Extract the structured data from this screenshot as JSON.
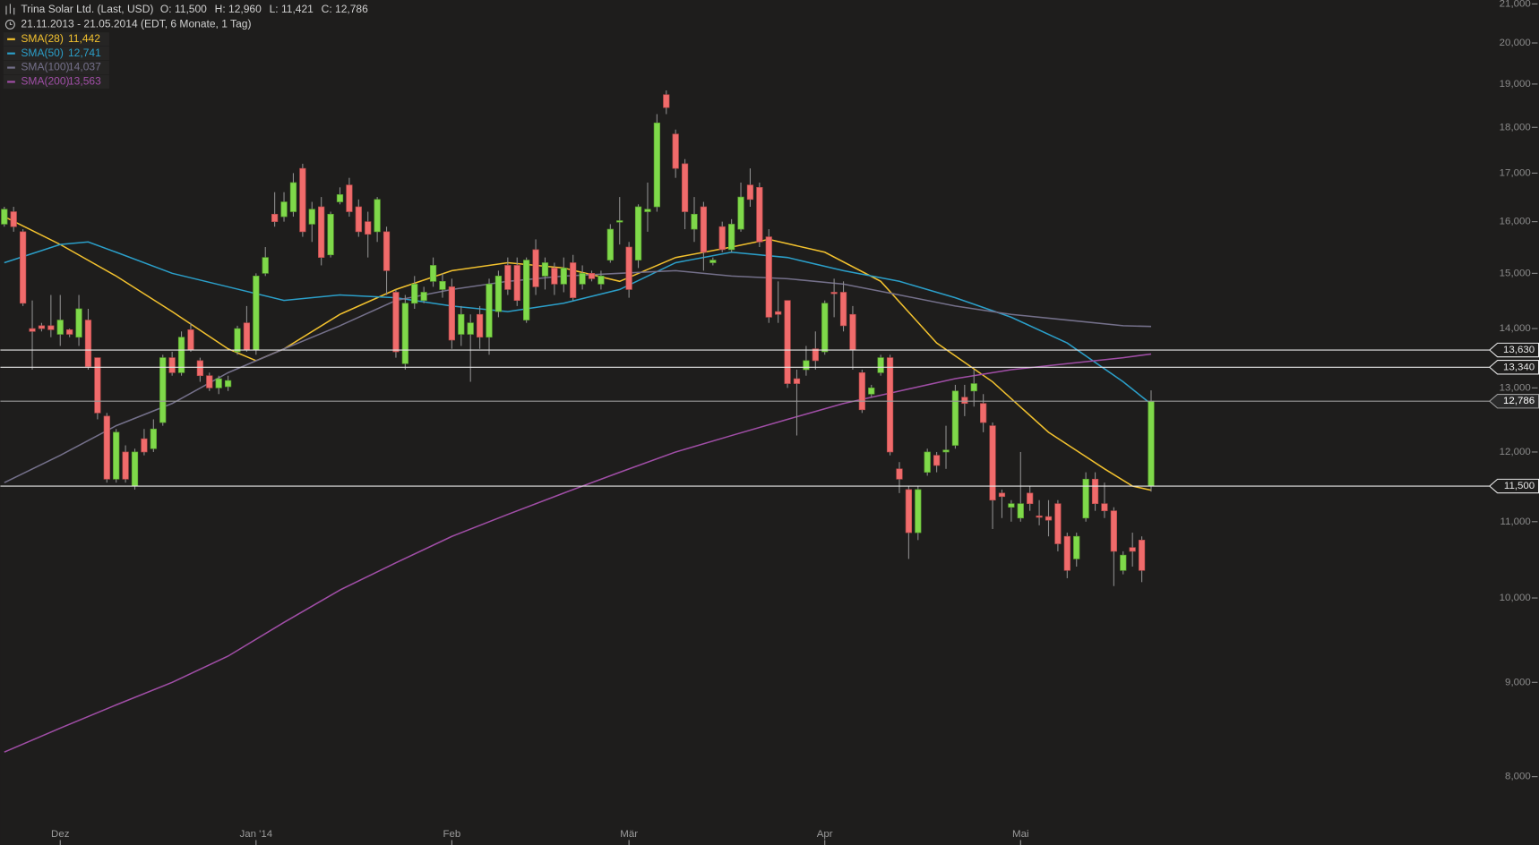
{
  "chart_data": {
    "type": "candlestick",
    "title": "Trina Solar Ltd. (Last, USD)",
    "ohlc_labels": [
      "O: 11,500",
      "H: 12,960",
      "L: 11,421",
      "C: 12,786"
    ],
    "subtitle": "21.11.2013 - 21.05.2014 (EDT, 6 Monate, 1 Tag)",
    "up_color": "#7fd94a",
    "down_color": "#f06b6b",
    "log_scale": true,
    "ylim": [
      7500,
      21000
    ],
    "yticks": [
      {
        "value": 8000,
        "label": "8,000"
      },
      {
        "value": 9000,
        "label": "9,000"
      },
      {
        "value": 10000,
        "label": "10,000"
      },
      {
        "value": 11000,
        "label": "11,000"
      },
      {
        "value": 12000,
        "label": "12,000"
      },
      {
        "value": 13000,
        "label": "13,000"
      },
      {
        "value": 14000,
        "label": "14,000"
      },
      {
        "value": 15000,
        "label": "15,000"
      },
      {
        "value": 16000,
        "label": "16,000"
      },
      {
        "value": 17000,
        "label": "17,000"
      },
      {
        "value": 18000,
        "label": "18,000"
      },
      {
        "value": 19000,
        "label": "19,000"
      },
      {
        "value": 20000,
        "label": "20,000"
      },
      {
        "value": 21000,
        "label": "21,000"
      }
    ],
    "xticks": [
      {
        "value": 6,
        "label": "Dez"
      },
      {
        "value": 27,
        "label": "Jan '14"
      },
      {
        "value": 48,
        "label": "Feb"
      },
      {
        "value": 67,
        "label": "Mär"
      },
      {
        "value": 88,
        "label": "Apr"
      },
      {
        "value": 109,
        "label": "Mai"
      }
    ],
    "open": [
      15950,
      16200,
      15800,
      14000,
      14050,
      14050,
      13900,
      13980,
      13850,
      14150,
      13500,
      12550,
      11600,
      12000,
      11500,
      12200,
      12050,
      12450,
      13500,
      13250,
      13980,
      13450,
      13200,
      13000,
      13020,
      13600,
      14100,
      13630,
      15000,
      16150,
      16100,
      16200,
      17100,
      15950,
      16300,
      15350,
      16400,
      16750,
      16300,
      16000,
      15800,
      15800,
      14650,
      13400,
      14450,
      14500,
      14850,
      14700,
      14750,
      13900,
      13900,
      14250,
      13850,
      14300,
      15150,
      15150,
      14150,
      15450,
      14950,
      15100,
      14800,
      15200,
      14800,
      15000,
      14800,
      15250,
      16000,
      15500,
      15250,
      16200,
      16300,
      18750,
      17850,
      17200,
      15850,
      16300,
      15200,
      15900,
      15450,
      15850,
      16750,
      16700,
      15700,
      14300,
      14500,
      13150,
      13300,
      13650,
      13600,
      14650,
      14650,
      14250,
      13250,
      12900,
      13250,
      13500,
      11750,
      11450,
      10850,
      11700,
      11950,
      12000,
      12100,
      12850,
      12950,
      12750,
      12400,
      11400,
      11200,
      11050,
      11400,
      11080,
      11070,
      11250,
      10800,
      10500,
      11050,
      11600,
      11250,
      11150,
      10350,
      10650,
      10750,
      11500
    ],
    "high": [
      16300,
      16300,
      15850,
      14500,
      14100,
      14600,
      14600,
      14000,
      14600,
      14350,
      13500,
      12600,
      12350,
      12100,
      12050,
      12350,
      12500,
      13550,
      13600,
      13950,
      14100,
      13500,
      13250,
      13200,
      13200,
      14050,
      14400,
      15000,
      15500,
      16600,
      16600,
      17000,
      17200,
      16400,
      16500,
      16200,
      16700,
      16900,
      16450,
      16200,
      16500,
      15900,
      14700,
      14600,
      14950,
      14750,
      15300,
      15000,
      14900,
      14400,
      14250,
      14400,
      14900,
      15050,
      15300,
      15300,
      15300,
      15650,
      15300,
      15200,
      15300,
      15350,
      15150,
      15050,
      15050,
      15950,
      16500,
      15600,
      16350,
      16800,
      18300,
      18850,
      17950,
      17300,
      16500,
      16400,
      15300,
      16000,
      16050,
      16800,
      17100,
      16800,
      15850,
      14850,
      14500,
      13300,
      13700,
      13950,
      14500,
      14900,
      14850,
      14400,
      13300,
      13050,
      13550,
      13550,
      11850,
      11500,
      11500,
      12050,
      12000,
      12400,
      13050,
      13050,
      13300,
      12900,
      12450,
      11450,
      11300,
      12000,
      11500,
      11300,
      11300,
      11300,
      10850,
      10850,
      11700,
      11700,
      11550,
      11200,
      10600,
      10850,
      10800,
      12960
    ],
    "low": [
      15900,
      15800,
      14400,
      13300,
      13950,
      13850,
      13700,
      13850,
      13700,
      13300,
      12500,
      11550,
      11550,
      11550,
      11450,
      11950,
      12000,
      12400,
      13200,
      13200,
      13600,
      13100,
      12950,
      12900,
      12950,
      13550,
      13600,
      13550,
      14950,
      15900,
      16000,
      16100,
      15700,
      15600,
      15150,
      15300,
      16350,
      16100,
      15700,
      15300,
      15600,
      14600,
      13500,
      13300,
      14350,
      14450,
      14750,
      14550,
      13650,
      13700,
      13100,
      13650,
      13550,
      14200,
      14600,
      14400,
      14100,
      14600,
      14700,
      14600,
      14650,
      14500,
      14700,
      14850,
      14700,
      15200,
      15550,
      14550,
      15100,
      15800,
      16200,
      18300,
      16900,
      15850,
      15600,
      15050,
      15150,
      15400,
      15400,
      15800,
      16300,
      15500,
      14100,
      14100,
      13000,
      12250,
      13200,
      13300,
      13550,
      14200,
      13950,
      13300,
      12600,
      12850,
      13200,
      11950,
      11400,
      10500,
      10750,
      11650,
      11700,
      11750,
      12050,
      12550,
      12700,
      12300,
      10900,
      11050,
      11000,
      11000,
      11150,
      10950,
      10800,
      10600,
      10250,
      10400,
      11000,
      11150,
      11050,
      10150,
      10300,
      10400,
      10200,
      11421
    ],
    "close": [
      16250,
      15900,
      14450,
      13950,
      14000,
      13980,
      14150,
      13900,
      14350,
      13350,
      12600,
      11600,
      12300,
      11600,
      12000,
      12000,
      12350,
      13500,
      13250,
      13850,
      13630,
      13200,
      13000,
      13150,
      13120,
      14000,
      13630,
      14950,
      15300,
      16000,
      16400,
      16800,
      15800,
      16250,
      15300,
      16150,
      16550,
      16200,
      15800,
      15750,
      16450,
      15050,
      13600,
      14450,
      14800,
      14650,
      15150,
      14850,
      13800,
      14250,
      14100,
      13850,
      14800,
      14950,
      14700,
      14500,
      15250,
      14750,
      15200,
      14800,
      15100,
      14550,
      15000,
      14900,
      14950,
      15850,
      16020,
      14700,
      16300,
      16250,
      18100,
      18450,
      17100,
      16200,
      16150,
      15400,
      15250,
      15450,
      15950,
      16500,
      16450,
      15600,
      14200,
      14250,
      13070,
      13070,
      13450,
      13450,
      14450,
      14630,
      14050,
      13630,
      12650,
      13000,
      13500,
      12000,
      11600,
      10850,
      11450,
      12000,
      11800,
      12030,
      12950,
      12750,
      13070,
      12450,
      11300,
      11350,
      11250,
      11250,
      11250,
      11060,
      11020,
      10700,
      10350,
      10800,
      11600,
      11250,
      11150,
      10600,
      10550,
      10600,
      10350,
      12786
    ],
    "series": [
      {
        "name": "SMA(28)",
        "color": "#f2c12e",
        "value_label": "11,442",
        "x": [
          0,
          6,
          12,
          18,
          24,
          27,
          30,
          36,
          42,
          48,
          54,
          60,
          66,
          72,
          78,
          82,
          88,
          94,
          100,
          106,
          112,
          118,
          121,
          123
        ],
        "values": [
          16100,
          15550,
          14950,
          14300,
          13650,
          13450,
          13650,
          14250,
          14700,
          15050,
          15200,
          15100,
          14850,
          15300,
          15500,
          15650,
          15400,
          14850,
          13750,
          13100,
          12300,
          11750,
          11500,
          11442
        ]
      },
      {
        "name": "SMA(50)",
        "color": "#2b9fc9",
        "value_label": "12,741",
        "x": [
          0,
          6,
          9,
          12,
          18,
          24,
          30,
          36,
          42,
          48,
          54,
          60,
          66,
          72,
          78,
          84,
          90,
          96,
          102,
          108,
          114,
          120,
          123
        ],
        "values": [
          15200,
          15550,
          15600,
          15400,
          15000,
          14750,
          14500,
          14600,
          14550,
          14400,
          14300,
          14450,
          14700,
          15200,
          15400,
          15300,
          15050,
          14850,
          14550,
          14200,
          13750,
          13100,
          12741
        ]
      },
      {
        "name": "SMA(100)",
        "color": "#74708a",
        "value_label": "14,037",
        "x": [
          0,
          6,
          12,
          18,
          24,
          30,
          36,
          42,
          48,
          54,
          60,
          66,
          72,
          78,
          84,
          90,
          96,
          102,
          108,
          114,
          120,
          123
        ],
        "values": [
          11550,
          11950,
          12400,
          12750,
          13250,
          13650,
          14050,
          14500,
          14700,
          14850,
          14950,
          15000,
          15050,
          14950,
          14900,
          14800,
          14600,
          14400,
          14250,
          14150,
          14050,
          14037
        ]
      },
      {
        "name": "SMA(200)",
        "color": "#a04ea6",
        "value_label": "13,563",
        "x": [
          0,
          6,
          12,
          18,
          24,
          30,
          36,
          42,
          48,
          54,
          60,
          66,
          72,
          78,
          84,
          90,
          96,
          102,
          108,
          114,
          120,
          123
        ],
        "values": [
          8250,
          8500,
          8750,
          9000,
          9300,
          9700,
          10100,
          10450,
          10800,
          11100,
          11400,
          11700,
          12000,
          12250,
          12500,
          12750,
          12950,
          13150,
          13300,
          13400,
          13500,
          13563
        ]
      }
    ],
    "levels": [
      {
        "value": 13630,
        "label": "13,630"
      },
      {
        "value": 13340,
        "label": "13,340"
      },
      {
        "value": 11500,
        "label": "11,500"
      }
    ],
    "last_price": {
      "value": 12786,
      "label": "12,786"
    }
  }
}
